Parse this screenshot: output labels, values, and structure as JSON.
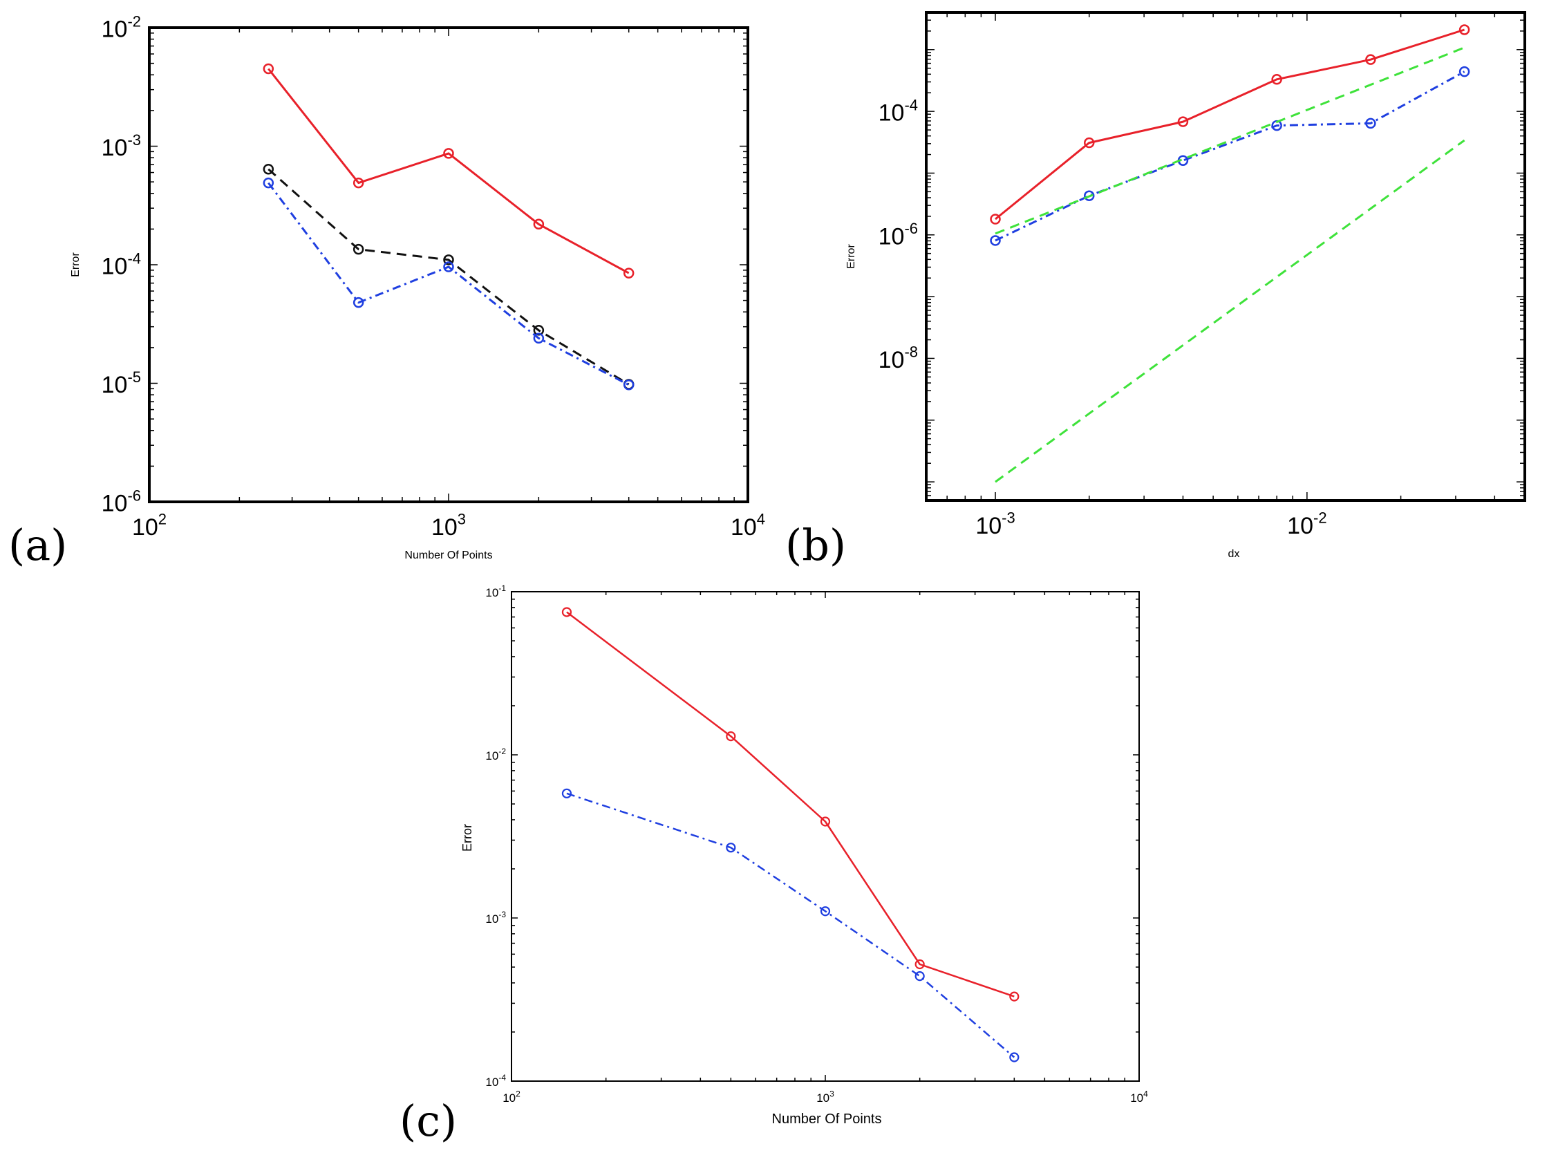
{
  "chart_data": [
    {
      "panel": "(a)",
      "type": "line",
      "xscale": "log",
      "yscale": "log",
      "xlabel": "Number Of Points",
      "ylabel": "Error",
      "xlim": [
        100,
        10000
      ],
      "ylim": [
        1e-06,
        0.01
      ],
      "x_ticks": [
        {
          "base": "10",
          "exp": "2"
        },
        {
          "base": "10",
          "exp": "3"
        },
        {
          "base": "10",
          "exp": "4"
        }
      ],
      "y_ticks": [
        {
          "base": "10",
          "exp": "-6"
        },
        {
          "base": "10",
          "exp": "-5"
        },
        {
          "base": "10",
          "exp": "-4"
        },
        {
          "base": "10",
          "exp": "-3"
        },
        {
          "base": "10",
          "exp": "-2"
        }
      ],
      "series": [
        {
          "name": "red",
          "color": "#e8212a",
          "style": "solid",
          "marker": "circle",
          "x": [
            250,
            500,
            1000,
            2000,
            4000
          ],
          "y": [
            0.0045,
            0.00049,
            0.00087,
            0.00022,
            8.5e-05
          ]
        },
        {
          "name": "black",
          "color": "#111111",
          "style": "dashed",
          "marker": "circle",
          "x": [
            250,
            500,
            1000,
            2000,
            4000
          ],
          "y": [
            0.00064,
            0.000135,
            0.00011,
            2.8e-05,
            9.8e-06
          ]
        },
        {
          "name": "blue",
          "color": "#1f3fe0",
          "style": "dashdot",
          "marker": "circle",
          "x": [
            250,
            500,
            1000,
            2000,
            4000
          ],
          "y": [
            0.00049,
            4.8e-05,
            9.6e-05,
            2.4e-05,
            9.7e-06
          ]
        }
      ]
    },
    {
      "panel": "(b)",
      "type": "line",
      "xscale": "log",
      "yscale": "log",
      "xlabel": "dx",
      "ylabel": "Error",
      "xlim": [
        0.0006,
        0.05
      ],
      "ylim": [
        5e-11,
        0.004
      ],
      "x_ticks": [
        {
          "value": 0.001,
          "base": "10",
          "exp": "-3"
        },
        {
          "value": 0.01,
          "base": "10",
          "exp": "-2"
        }
      ],
      "y_ticks": [
        {
          "value": 1e-08,
          "base": "10",
          "exp": "-8"
        },
        {
          "value": 1e-06,
          "base": "10",
          "exp": "-6"
        },
        {
          "value": 0.0001,
          "base": "10",
          "exp": "-4"
        }
      ],
      "series": [
        {
          "name": "red",
          "color": "#e8212a",
          "style": "solid",
          "marker": "circle",
          "x": [
            0.001,
            0.002,
            0.004,
            0.008,
            0.016,
            0.032
          ],
          "y": [
            1.8e-06,
            3.1e-05,
            6.8e-05,
            0.00033,
            0.00069,
            0.0021
          ]
        },
        {
          "name": "blue",
          "color": "#1f3fe0",
          "style": "dashdot",
          "marker": "circle",
          "x": [
            0.001,
            0.002,
            0.004,
            0.008,
            0.016,
            0.032
          ],
          "y": [
            8.1e-07,
            4.3e-06,
            1.6e-05,
            5.9e-05,
            6.4e-05,
            0.00044
          ]
        },
        {
          "name": "green reference 1",
          "color": "#3ee23a",
          "style": "dashed",
          "marker": "none",
          "x": [
            0.001,
            0.032
          ],
          "y": [
            1.05e-06,
            0.00108
          ]
        },
        {
          "name": "green reference 2",
          "color": "#3ee23a",
          "style": "dashed",
          "marker": "none",
          "x": [
            0.001,
            0.032
          ],
          "y": [
            1e-10,
            3.4e-05
          ]
        }
      ]
    },
    {
      "panel": "(c)",
      "type": "line",
      "xscale": "log",
      "yscale": "log",
      "xlabel": "Number Of Points",
      "ylabel": "Error",
      "xlim": [
        100,
        10000
      ],
      "ylim": [
        0.0001,
        0.1
      ],
      "x_ticks": [
        {
          "base": "10",
          "exp": "2"
        },
        {
          "base": "10",
          "exp": "3"
        },
        {
          "base": "10",
          "exp": "4"
        }
      ],
      "y_ticks": [
        {
          "base": "10",
          "exp": "-4"
        },
        {
          "base": "10",
          "exp": "-3"
        },
        {
          "base": "10",
          "exp": "-2"
        },
        {
          "base": "10",
          "exp": "-1"
        }
      ],
      "series": [
        {
          "name": "red",
          "color": "#e8212a",
          "style": "solid",
          "marker": "circle",
          "x": [
            150,
            500,
            1000,
            2000,
            4000
          ],
          "y": [
            0.075,
            0.013,
            0.0039,
            0.00052,
            0.00033
          ]
        },
        {
          "name": "blue",
          "color": "#1f3fe0",
          "style": "dashdot",
          "marker": "circle",
          "x": [
            150,
            500,
            1000,
            2000,
            4000
          ],
          "y": [
            0.0058,
            0.0027,
            0.0011,
            0.00044,
            0.00014
          ]
        }
      ]
    }
  ]
}
